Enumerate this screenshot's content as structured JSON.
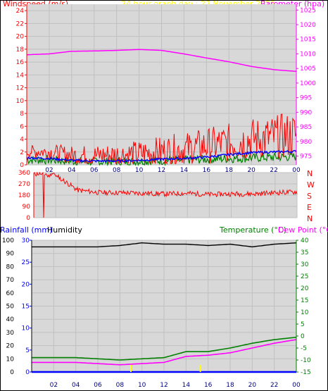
{
  "header": {
    "windspeed_label": "Windspeed (m/s)",
    "title": "24 hour graph day : 22 November 2025",
    "barometer_label": "Barometer (hpa)"
  },
  "colors": {
    "gust": "#ff0000",
    "wind_avg": "#0000ff",
    "wind_min": "#008000",
    "barometer": "#ff00ff",
    "title": "#ffff00",
    "direction": "#ff0000",
    "humidity": "#000000",
    "temperature": "#008000",
    "dewpoint": "#ff00ff",
    "rainfall": "#0000ff",
    "rain_tick": "#ffff00",
    "plot_bg": "#d8d8d8",
    "grid": "#c0c0c0"
  },
  "charts": {
    "x_tick_labels": [
      "02",
      "04",
      "06",
      "08",
      "10",
      "12",
      "14",
      "16",
      "18",
      "20",
      "22",
      "00"
    ],
    "wind": {
      "left_ticks": [
        "24",
        "22",
        "20",
        "18",
        "16",
        "14",
        "12",
        "10",
        "8",
        "6",
        "4",
        "2",
        "0"
      ],
      "right_ticks": [
        "1025",
        "1020",
        "1015",
        "1010",
        "1005",
        "1000",
        "995",
        "990",
        "985",
        "980",
        "975"
      ]
    },
    "direction": {
      "left_ticks": [
        "360",
        "270",
        "180",
        "90",
        "0"
      ],
      "compass": [
        "N",
        "W",
        "S",
        "E",
        "N"
      ]
    },
    "climate": {
      "rainfall_label": "Rainfall (mm)",
      "humidity_label": "Humidity",
      "temperature_label": "Temperature (°C)",
      "dewpoint_label": "Dew Point (°C)",
      "left_hum_ticks": [
        "100",
        "90",
        "80",
        "70",
        "60",
        "50",
        "40",
        "30",
        "20",
        "10",
        "0"
      ],
      "left_rain_ticks": [
        "30",
        "25",
        "20",
        "15",
        "10",
        "5",
        "0"
      ],
      "right_ticks": [
        "40",
        "35",
        "30",
        "25",
        "20",
        "15",
        "10",
        "5",
        "0",
        "-5",
        "-10",
        "-15"
      ]
    }
  },
  "chart_data": [
    {
      "type": "line",
      "title": "24 hour graph day : 22 November 2025",
      "x": [
        "00:30",
        "02:00",
        "04:00",
        "06:00",
        "08:00",
        "10:00",
        "12:00",
        "14:00",
        "16:00",
        "18:00",
        "20:00",
        "22:00",
        "00:00"
      ],
      "ylabel": "Windspeed (m/s)",
      "ylim": [
        0,
        25
      ],
      "y2label": "Barometer (hpa)",
      "y2lim": [
        972,
        1027
      ],
      "series": [
        {
          "name": "gust",
          "axis": "left",
          "values": [
            2.0,
            1.9,
            1.4,
            1.3,
            1.4,
            1.5,
            1.9,
            2.2,
            2.7,
            3.1,
            3.7,
            3.9,
            4.3
          ]
        },
        {
          "name": "average",
          "axis": "left",
          "values": [
            1.1,
            1.0,
            0.7,
            0.6,
            0.6,
            0.7,
            0.9,
            1.0,
            1.2,
            1.6,
            1.9,
            2.0,
            2.1
          ]
        },
        {
          "name": "minimum",
          "axis": "left",
          "values": [
            0.5,
            0.5,
            0.3,
            0.2,
            0.2,
            0.3,
            0.4,
            0.5,
            0.6,
            0.7,
            0.8,
            0.9,
            1.0
          ]
        },
        {
          "name": "barometer",
          "axis": "right",
          "values": [
            1009.7,
            1010.0,
            1010.9,
            1011.0,
            1011.2,
            1011.5,
            1011.2,
            1010.0,
            1008.6,
            1007.3,
            1005.7,
            1004.6,
            1004.0
          ]
        }
      ]
    },
    {
      "type": "line",
      "x": [
        "00:00",
        "01:00",
        "02:00",
        "04:00",
        "06:00",
        "08:00",
        "10:00",
        "12:00",
        "14:00",
        "16:00",
        "18:00",
        "20:00",
        "22:00",
        "00:00"
      ],
      "ylim": [
        0,
        360
      ],
      "series": [
        {
          "name": "wind direction",
          "values": [
            350,
            345,
            340,
            220,
            200,
            200,
            195,
            190,
            195,
            185,
            190,
            190,
            200,
            205
          ]
        }
      ]
    },
    {
      "type": "line",
      "x": [
        "00:00",
        "02:00",
        "04:00",
        "06:00",
        "08:00",
        "10:00",
        "12:00",
        "14:00",
        "16:00",
        "18:00",
        "20:00",
        "22:00",
        "00:00"
      ],
      "series": [
        {
          "name": "Humidity",
          "axis": "left",
          "ylim": [
            0,
            100
          ],
          "values": [
            95,
            95,
            95,
            95,
            96,
            98,
            97,
            97,
            96,
            97,
            95,
            97,
            98
          ]
        },
        {
          "name": "Temperature (°C)",
          "axis": "right",
          "ylim": [
            -15,
            40
          ],
          "values": [
            -9,
            -9,
            -9,
            -9.5,
            -10,
            -9.5,
            -9,
            -6.5,
            -6.5,
            -5,
            -3,
            -1.5,
            -0.5
          ]
        },
        {
          "name": "Dew Point (°C)",
          "axis": "right",
          "ylim": [
            -15,
            40
          ],
          "values": [
            -11,
            -11,
            -11,
            -11.5,
            -12,
            -11.5,
            -11,
            -8.5,
            -8,
            -7,
            -5,
            -3,
            -1.5
          ]
        },
        {
          "name": "Rainfall (mm)",
          "axis": "left",
          "ylim": [
            0,
            30
          ],
          "values": [
            0,
            0,
            0,
            0,
            0,
            0,
            0,
            0,
            0,
            0,
            0,
            0,
            0
          ]
        }
      ]
    }
  ]
}
